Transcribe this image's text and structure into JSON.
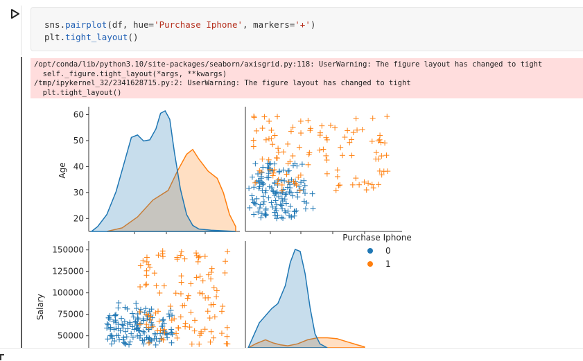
{
  "notebook": {
    "run_icon": "play-triangle-icon",
    "code_lines": [
      {
        "parts": [
          {
            "t": "sns.",
            "c": "tok-punct"
          },
          {
            "t": "pairplot",
            "c": "tok-fn"
          },
          {
            "t": "(df, hue=",
            "c": "tok-punct"
          },
          {
            "t": "'Purchase Iphone'",
            "c": "tok-str"
          },
          {
            "t": ", markers=",
            "c": "tok-punct"
          },
          {
            "t": "'+'",
            "c": "tok-str"
          },
          {
            "t": ")",
            "c": "tok-punct"
          }
        ]
      },
      {
        "parts": [
          {
            "t": "plt.",
            "c": "tok-punct"
          },
          {
            "t": "tight_layout",
            "c": "tok-fn"
          },
          {
            "t": "()",
            "c": "tok-punct"
          }
        ]
      }
    ],
    "stderr_lines": [
      "/opt/conda/lib/python3.10/site-packages/seaborn/axisgrid.py:118: UserWarning: The figure layout has changed to tight",
      "  self._figure.tight_layout(*args, **kwargs)",
      "/tmp/ipykernel_32/2341628715.py:2: UserWarning: The figure layout has changed to tight",
      "  plt.tight_layout()"
    ]
  },
  "chart_data": {
    "type": "pairplot",
    "variables": [
      "Age",
      "Salary"
    ],
    "hue": "Purchase Iphone",
    "legend": {
      "title": "Purchase Iphone",
      "entries": [
        "0",
        "1"
      ],
      "placement": "right"
    },
    "colors": {
      "0": "#1f77b4",
      "1": "#ff7f0e"
    },
    "age_ticks": [
      20,
      30,
      40,
      50,
      60
    ],
    "salary_ticks": [
      "150000",
      "125000",
      "100000",
      "75000",
      "50000"
    ],
    "salary_tick_values": [
      150000,
      125000,
      100000,
      75000,
      50000
    ],
    "age_range": [
      15,
      62
    ],
    "salary_range": [
      36000,
      157000
    ],
    "kde_age": {
      "0": [
        [
          15,
          0
        ],
        [
          17,
          0.04
        ],
        [
          20,
          0.14
        ],
        [
          23,
          0.33
        ],
        [
          26,
          0.6
        ],
        [
          28,
          0.78
        ],
        [
          30,
          0.8
        ],
        [
          32,
          0.75
        ],
        [
          34,
          0.76
        ],
        [
          36,
          0.85
        ],
        [
          37.5,
          0.98
        ],
        [
          39,
          1.0
        ],
        [
          40.5,
          0.93
        ],
        [
          42,
          0.66
        ],
        [
          44,
          0.35
        ],
        [
          46,
          0.14
        ],
        [
          48,
          0.05
        ],
        [
          50,
          0.02
        ],
        [
          54,
          0.01
        ],
        [
          58,
          0.005
        ],
        [
          62,
          0
        ]
      ],
      "1": [
        [
          20,
          0
        ],
        [
          25,
          0.03
        ],
        [
          30,
          0.12
        ],
        [
          35,
          0.26
        ],
        [
          40,
          0.34
        ],
        [
          43,
          0.5
        ],
        [
          46,
          0.64
        ],
        [
          48,
          0.68
        ],
        [
          50,
          0.6
        ],
        [
          53,
          0.5
        ],
        [
          56,
          0.44
        ],
        [
          58,
          0.32
        ],
        [
          60,
          0.14
        ],
        [
          62,
          0.04
        ]
      ]
    },
    "kde_salary": {
      "0": [
        [
          36000,
          0
        ],
        [
          45000,
          0.25
        ],
        [
          55000,
          0.39
        ],
        [
          60000,
          0.44
        ],
        [
          66000,
          0.62
        ],
        [
          70000,
          0.85
        ],
        [
          74000,
          0.98
        ],
        [
          78000,
          0.96
        ],
        [
          82000,
          0.74
        ],
        [
          86000,
          0.4
        ],
        [
          90000,
          0.14
        ],
        [
          94000,
          0.04
        ],
        [
          100000,
          0
        ]
      ],
      "1": [
        [
          36000,
          0
        ],
        [
          42000,
          0.04
        ],
        [
          50000,
          0.08
        ],
        [
          56000,
          0.05
        ],
        [
          62000,
          0.03
        ],
        [
          68000,
          0.02
        ],
        [
          76000,
          0.04
        ],
        [
          84000,
          0.08
        ],
        [
          92000,
          0.1
        ],
        [
          100000,
          0.1
        ],
        [
          108000,
          0.09
        ],
        [
          116000,
          0.06
        ],
        [
          124000,
          0.03
        ],
        [
          130000,
          0.01
        ]
      ]
    },
    "scatter_groups": [
      {
        "class": "0",
        "n": 145,
        "age": [
          20,
          42
        ],
        "salary": [
          42000,
          90000
        ]
      },
      {
        "class": "1",
        "n": 110,
        "age": [
          30,
          60
        ],
        "salary": [
          40000,
          150000
        ]
      }
    ]
  }
}
